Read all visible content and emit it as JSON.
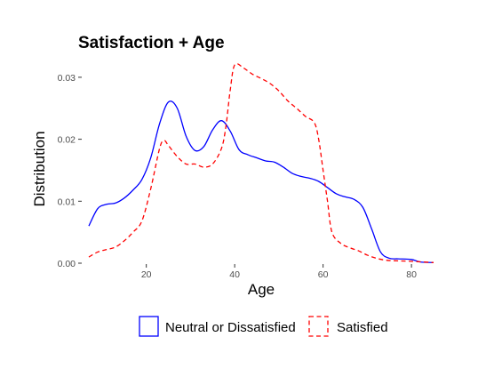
{
  "chart_data": {
    "type": "line",
    "title": "Satisfaction + Age",
    "xlabel": "Age",
    "ylabel": "Distribution",
    "xlim": [
      7,
      85
    ],
    "ylim": [
      0,
      0.033
    ],
    "x_ticks": [
      20,
      40,
      60,
      80
    ],
    "x_tick_labels": [
      "20",
      "40",
      "60",
      "80"
    ],
    "y_ticks": [
      0,
      0.01,
      0.02,
      0.03
    ],
    "y_tick_labels": [
      "0.00",
      "0.01",
      "0.02",
      "0.03"
    ],
    "grid": false,
    "legend_position": "bottom",
    "series": [
      {
        "name": "Neutral or Dissatisfied",
        "color": "#0000FF",
        "dash": "solid",
        "points": [
          [
            7,
            0.006
          ],
          [
            9,
            0.0088
          ],
          [
            11,
            0.0095
          ],
          [
            13,
            0.0097
          ],
          [
            15,
            0.0105
          ],
          [
            17,
            0.0118
          ],
          [
            19,
            0.0135
          ],
          [
            21,
            0.017
          ],
          [
            23,
            0.0225
          ],
          [
            25,
            0.026
          ],
          [
            27,
            0.025
          ],
          [
            29,
            0.0205
          ],
          [
            31,
            0.0182
          ],
          [
            33,
            0.0188
          ],
          [
            35,
            0.0215
          ],
          [
            37,
            0.023
          ],
          [
            39,
            0.0213
          ],
          [
            41,
            0.0183
          ],
          [
            43,
            0.0175
          ],
          [
            45,
            0.017
          ],
          [
            47,
            0.0165
          ],
          [
            49,
            0.0163
          ],
          [
            51,
            0.0155
          ],
          [
            53,
            0.0145
          ],
          [
            55,
            0.014
          ],
          [
            57,
            0.0137
          ],
          [
            59,
            0.0132
          ],
          [
            61,
            0.0122
          ],
          [
            63,
            0.0112
          ],
          [
            65,
            0.0107
          ],
          [
            67,
            0.0103
          ],
          [
            69,
            0.009
          ],
          [
            71,
            0.0055
          ],
          [
            73,
            0.0018
          ],
          [
            75,
            0.0008
          ],
          [
            77,
            0.0007
          ],
          [
            80,
            0.0006
          ],
          [
            82,
            0.0002
          ],
          [
            85,
            0.0001
          ]
        ]
      },
      {
        "name": "Satisfied",
        "color": "#FF0000",
        "dash": "dashed",
        "points": [
          [
            7,
            0.001
          ],
          [
            9,
            0.0018
          ],
          [
            11,
            0.0022
          ],
          [
            13,
            0.0026
          ],
          [
            15,
            0.0036
          ],
          [
            17,
            0.005
          ],
          [
            19,
            0.0068
          ],
          [
            21,
            0.012
          ],
          [
            23,
            0.0185
          ],
          [
            24,
            0.0198
          ],
          [
            25,
            0.019
          ],
          [
            27,
            0.0172
          ],
          [
            29,
            0.016
          ],
          [
            31,
            0.016
          ],
          [
            33,
            0.0155
          ],
          [
            35,
            0.016
          ],
          [
            37,
            0.0185
          ],
          [
            38,
            0.022
          ],
          [
            39,
            0.028
          ],
          [
            40,
            0.032
          ],
          [
            42,
            0.0315
          ],
          [
            44,
            0.0305
          ],
          [
            46,
            0.0298
          ],
          [
            48,
            0.029
          ],
          [
            50,
            0.0278
          ],
          [
            52,
            0.0262
          ],
          [
            54,
            0.025
          ],
          [
            56,
            0.0237
          ],
          [
            58,
            0.0227
          ],
          [
            59,
            0.02
          ],
          [
            60,
            0.015
          ],
          [
            61,
            0.01
          ],
          [
            62,
            0.005
          ],
          [
            64,
            0.0032
          ],
          [
            66,
            0.0025
          ],
          [
            68,
            0.002
          ],
          [
            70,
            0.0013
          ],
          [
            72,
            0.0008
          ],
          [
            74,
            0.0005
          ],
          [
            76,
            0.0004
          ],
          [
            80,
            0.0003
          ],
          [
            85,
            0.0001
          ]
        ]
      }
    ]
  }
}
